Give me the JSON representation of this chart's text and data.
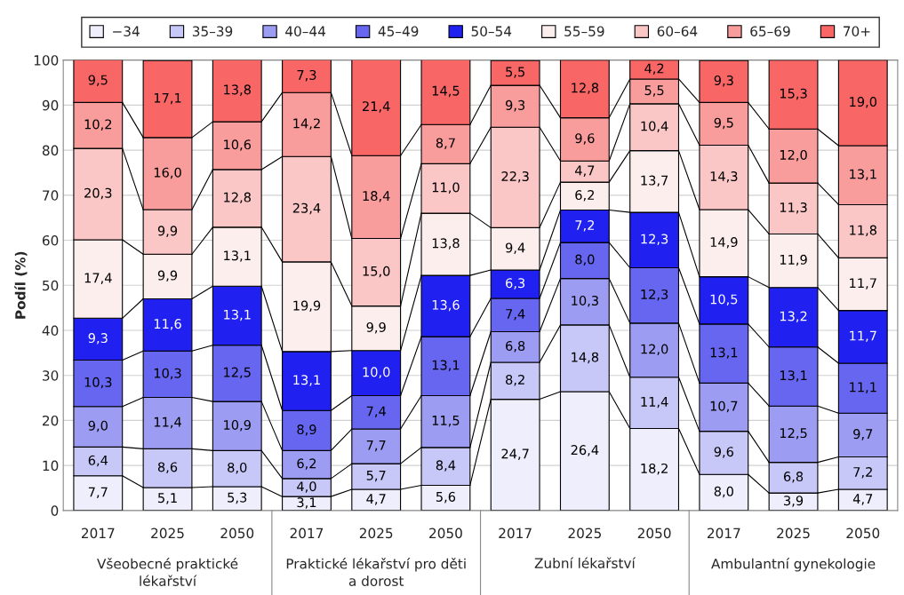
{
  "chart_data": {
    "type": "bar",
    "stacked": true,
    "ylabel": "Podíl (%)",
    "categories": [
      "2017",
      "2025",
      "2050",
      "2017",
      "2025",
      "2050",
      "2017",
      "2025",
      "2050",
      "2017",
      "2025",
      "2050"
    ],
    "annotations": [
      "Všeobecné praktické\nlékařství",
      "Praktické lékařství pro děti\na dorost",
      "Zubní lékařství",
      "Ambulantní gynekologie"
    ],
    "ylim": [
      0,
      100
    ],
    "yticks": [
      0,
      10,
      20,
      30,
      40,
      50,
      60,
      70,
      80,
      90,
      100
    ],
    "grid": "y",
    "legend": "top",
    "series": [
      {
        "name": "−34",
        "color": "#eeeefc",
        "values": [
          7.7,
          5.1,
          5.3,
          3.1,
          4.7,
          5.6,
          24.7,
          26.4,
          18.2,
          8.0,
          3.9,
          4.7
        ],
        "value_labels": [
          "7,7",
          "5,1",
          "5,3",
          "3,1",
          "4,7",
          "5,6",
          "24,7",
          "26,4",
          "18,2",
          "8,0",
          "3,9",
          "4,7"
        ]
      },
      {
        "name": "35–39",
        "color": "#c8c8f8",
        "values": [
          6.4,
          8.6,
          8.0,
          4.0,
          5.7,
          8.4,
          8.2,
          14.8,
          11.4,
          9.6,
          6.8,
          7.2
        ],
        "value_labels": [
          "6,4",
          "8,6",
          "8,0",
          "4,0",
          "5,7",
          "8,4",
          "8,2",
          "14,8",
          "11,4",
          "9,6",
          "6,8",
          "7,2"
        ]
      },
      {
        "name": "40–44",
        "color": "#9c9cf2",
        "values": [
          9.0,
          11.4,
          10.9,
          6.2,
          7.7,
          11.5,
          6.8,
          10.3,
          12.0,
          10.7,
          12.5,
          9.7
        ],
        "value_labels": [
          "9,0",
          "11,4",
          "10,9",
          "6,2",
          "7,7",
          "11,5",
          "6,8",
          "10,3",
          "12,0",
          "10,7",
          "12,5",
          "9,7"
        ]
      },
      {
        "name": "45–49",
        "color": "#6666f0",
        "values": [
          10.3,
          10.3,
          12.5,
          8.9,
          7.4,
          13.1,
          7.4,
          8.0,
          12.3,
          13.1,
          13.1,
          11.1
        ],
        "value_labels": [
          "10,3",
          "10,3",
          "12,5",
          "8,9",
          "7,4",
          "13,1",
          "7,4",
          "8,0",
          "12,3",
          "13,1",
          "13,1",
          "11,1"
        ]
      },
      {
        "name": "50–54",
        "color": "#2020f0",
        "values": [
          9.3,
          11.6,
          13.1,
          13.1,
          10.0,
          13.6,
          6.3,
          7.2,
          12.3,
          10.5,
          13.2,
          11.7
        ],
        "value_labels": [
          "9,3",
          "11,6",
          "13,1",
          "13,1",
          "10,0",
          "13,6",
          "6,3",
          "7,2",
          "12,3",
          "10,5",
          "13,2",
          "11,7"
        ]
      },
      {
        "name": "55–59",
        "color": "#fdeeee",
        "values": [
          17.4,
          9.9,
          13.1,
          19.9,
          9.9,
          13.8,
          9.4,
          6.2,
          13.7,
          14.9,
          11.9,
          11.7
        ],
        "value_labels": [
          "17,4",
          "9,9",
          "13,1",
          "19,9",
          "9,9",
          "13,8",
          "9,4",
          "6,2",
          "13,7",
          "14,9",
          "11,9",
          "11,7"
        ]
      },
      {
        "name": "60–64",
        "color": "#fbc6c6",
        "values": [
          20.3,
          9.9,
          12.8,
          23.4,
          15.0,
          11.0,
          22.3,
          4.7,
          10.4,
          14.3,
          11.3,
          11.8
        ],
        "value_labels": [
          "20,3",
          "9,9",
          "12,8",
          "23,4",
          "15,0",
          "11,0",
          "22,3",
          "4,7",
          "10,4",
          "14,3",
          "11,3",
          "11,8"
        ]
      },
      {
        "name": "65–69",
        "color": "#f89c9c",
        "values": [
          10.2,
          16.0,
          10.6,
          14.2,
          18.4,
          8.7,
          9.3,
          9.6,
          5.5,
          9.5,
          12.0,
          13.1
        ],
        "value_labels": [
          "10,2",
          "16,0",
          "10,6",
          "14,2",
          "18,4",
          "8,7",
          "9,3",
          "9,6",
          "5,5",
          "9,5",
          "12,0",
          "13,1"
        ]
      },
      {
        "name": "70+",
        "color": "#f86666",
        "values": [
          9.5,
          17.1,
          13.8,
          7.3,
          21.4,
          14.5,
          5.5,
          12.8,
          4.2,
          9.3,
          15.3,
          19.0
        ],
        "value_labels": [
          "9,5",
          "17,1",
          "13,8",
          "7,3",
          "21,4",
          "14,5",
          "5,5",
          "12,8",
          "4,2",
          "9,3",
          "15,3",
          "19,0"
        ]
      }
    ]
  }
}
